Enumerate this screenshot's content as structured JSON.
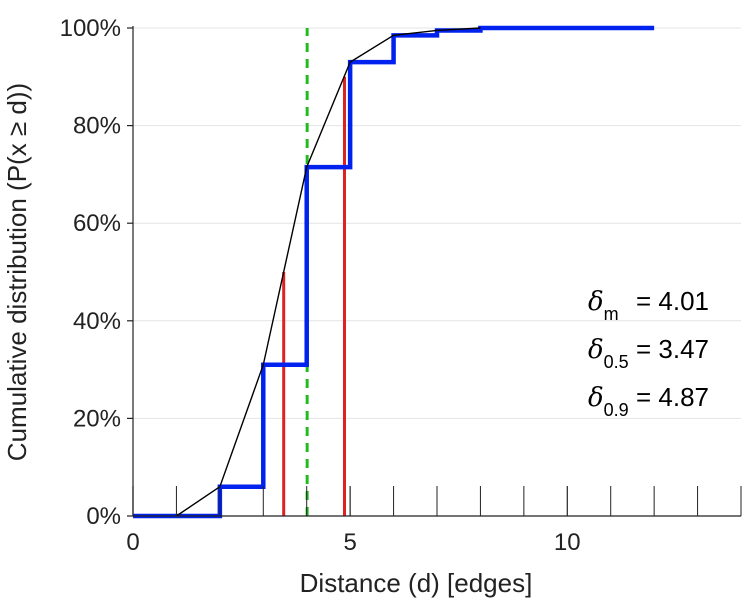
{
  "chart_data": {
    "type": "line",
    "title": "",
    "xlabel": "Distance (d) [edges]",
    "ylabel": "Cumulative distribution (P(x ≥ d))",
    "xlim": [
      0,
      14
    ],
    "ylim": [
      0,
      100
    ],
    "x_ticks": [
      0,
      5,
      10
    ],
    "x_tick_labels": [
      "0",
      "5",
      "10"
    ],
    "x_minor_ticks": [
      1,
      2,
      3,
      4,
      6,
      7,
      8,
      9,
      11,
      12,
      13,
      14
    ],
    "y_ticks": [
      0,
      20,
      40,
      60,
      80,
      100
    ],
    "y_tick_labels": [
      "0%",
      "20%",
      "40%",
      "60%",
      "80%",
      "100%"
    ],
    "grid": "horizontal",
    "series": [
      {
        "kind": "step",
        "color": "#0022ee",
        "x": [
          0,
          1,
          2,
          3,
          4,
          5,
          6,
          7,
          8,
          12
        ],
        "y": [
          0,
          0,
          6,
          31,
          71.5,
          93,
          98.5,
          99.5,
          100,
          100
        ]
      },
      {
        "kind": "smooth",
        "color": "#000000",
        "x": [
          1,
          2,
          3,
          4,
          5,
          6,
          7,
          8
        ],
        "y": [
          0,
          6,
          31,
          71.5,
          93,
          98.5,
          99.5,
          100
        ]
      }
    ],
    "reference_lines": [
      {
        "x": 4.01,
        "style": "dashed",
        "color": "#22bb22",
        "from": 0,
        "to": 100
      },
      {
        "x": 3.47,
        "style": "solid",
        "color": "#dd2222",
        "from": 0,
        "to": 50
      },
      {
        "x": 4.87,
        "style": "solid",
        "color": "#dd2222",
        "from": 0,
        "to": 90
      }
    ],
    "annotations": [
      {
        "symbol": "δ",
        "sub": "m",
        "text": "= 4.01"
      },
      {
        "symbol": "δ",
        "sub": "0.5",
        "text": "= 3.47"
      },
      {
        "symbol": "δ",
        "sub": "0.9",
        "text": "= 4.87"
      }
    ]
  }
}
